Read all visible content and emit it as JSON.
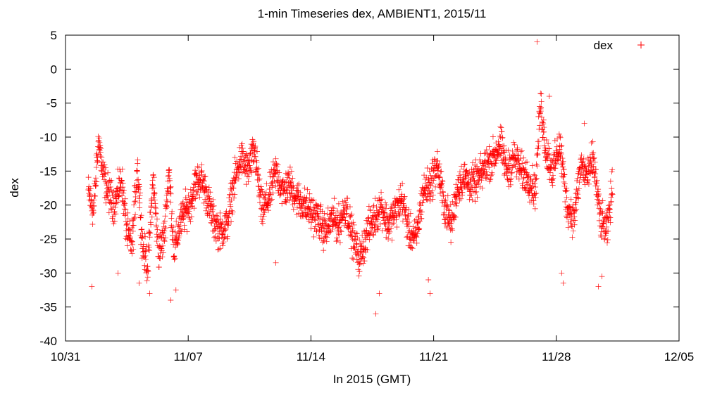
{
  "chart_data": {
    "type": "scatter",
    "title": "1-min Timeseries dex, AMBIENT1, 2015/11",
    "xlabel": "In 2015 (GMT)",
    "ylabel": "dex",
    "x_ticks": [
      "10/31",
      "11/07",
      "11/14",
      "11/21",
      "11/28",
      "12/05"
    ],
    "y_ticks": [
      5,
      0,
      -5,
      -10,
      -15,
      -20,
      -25,
      -30,
      -35,
      -40
    ],
    "xlim_days": [
      0,
      35
    ],
    "ylim": [
      -40,
      5
    ],
    "grid": false,
    "legend_position": "top-right",
    "series": [
      {
        "name": "dex",
        "color": "#ff0000",
        "marker": "plus",
        "profile_x_days": [
          1.3,
          1.6,
          1.9,
          2.1,
          2.4,
          2.8,
          3.2,
          3.5,
          3.8,
          4.1,
          4.4,
          4.7,
          5.0,
          5.3,
          5.6,
          5.9,
          6.2,
          6.5,
          6.8,
          7.1,
          7.4,
          7.7,
          8.0,
          8.4,
          8.8,
          9.2,
          9.6,
          10.0,
          10.4,
          10.8,
          11.2,
          11.6,
          12.0,
          12.4,
          12.8,
          13.2,
          13.6,
          14.0,
          14.4,
          14.8,
          15.2,
          15.6,
          16.0,
          16.4,
          16.8,
          17.2,
          17.6,
          18.0,
          18.4,
          18.8,
          19.2,
          19.6,
          20.0,
          20.4,
          20.8,
          21.2,
          21.6,
          22.0,
          22.4,
          22.8,
          23.2,
          23.6,
          24.0,
          24.4,
          24.8,
          25.2,
          25.6,
          26.0,
          26.4,
          26.8,
          27.1,
          27.4,
          27.8,
          28.2,
          28.6,
          29.0,
          29.4,
          29.8,
          30.1,
          30.5,
          30.9,
          31.2
        ],
        "profile_y": [
          -18,
          -21,
          -10,
          -15,
          -18,
          -20,
          -16,
          -24,
          -26,
          -14,
          -26,
          -29,
          -16,
          -27,
          -25,
          -15,
          -27,
          -23,
          -21,
          -20,
          -17,
          -16,
          -18,
          -22,
          -24,
          -23,
          -17,
          -13,
          -15,
          -12,
          -21,
          -19,
          -15,
          -18,
          -17,
          -19,
          -20,
          -21,
          -22,
          -24,
          -22,
          -23,
          -20,
          -25,
          -28,
          -24,
          -22,
          -20,
          -23,
          -21,
          -19,
          -24,
          -25,
          -18,
          -17,
          -14,
          -20,
          -23,
          -17,
          -16,
          -17,
          -16,
          -14,
          -13,
          -11,
          -15,
          -13,
          -15,
          -16,
          -18,
          -5,
          -12,
          -15,
          -11,
          -20,
          -22,
          -14,
          -16,
          -13,
          -22,
          -24,
          -17
        ],
        "outliers": [
          [
            1.5,
            -32
          ],
          [
            3.0,
            -30
          ],
          [
            4.2,
            -31.5
          ],
          [
            4.8,
            -33
          ],
          [
            6.0,
            -34
          ],
          [
            6.3,
            -32.5
          ],
          [
            12.0,
            -28.5
          ],
          [
            17.7,
            -36
          ],
          [
            17.9,
            -33
          ],
          [
            20.7,
            -31
          ],
          [
            20.8,
            -33
          ],
          [
            26.9,
            4
          ],
          [
            28.3,
            -30
          ],
          [
            28.4,
            -31.5
          ],
          [
            30.4,
            -32
          ],
          [
            30.6,
            -30.5
          ],
          [
            29.6,
            -8
          ],
          [
            27.6,
            -4
          ]
        ]
      }
    ]
  }
}
